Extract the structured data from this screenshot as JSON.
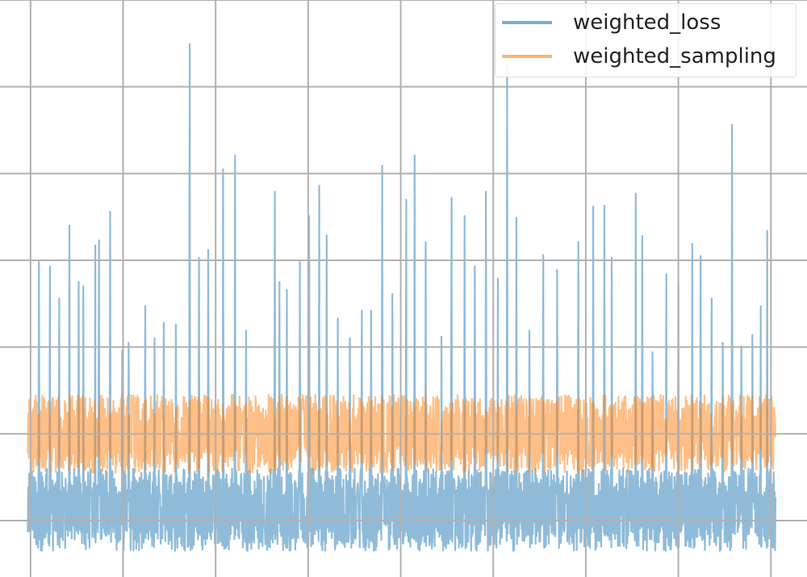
{
  "chart_data": {
    "type": "line",
    "title": "",
    "xlabel": "",
    "ylabel": "",
    "xlim": [
      -0.33,
      8.39
    ],
    "ylim": [
      -0.65,
      6.0
    ],
    "grid": true,
    "x_gridlines": [
      0,
      1,
      2,
      3,
      4,
      5,
      6,
      7,
      8
    ],
    "y_gridlines": [
      0,
      1,
      2,
      3,
      4,
      5,
      6
    ],
    "legend": {
      "placement": "top-right",
      "entries": [
        "weighted_loss",
        "weighted_sampling"
      ]
    },
    "series": [
      {
        "name": "weighted_loss",
        "color": "#1f77b4",
        "baseline_range": [
          -0.35,
          0.6
        ],
        "x_range": [
          -0.03,
          8.05
        ],
        "spikes": [
          [
            0.09,
            2.98
          ],
          [
            0.21,
            2.93
          ],
          [
            0.31,
            2.56
          ],
          [
            0.42,
            3.4
          ],
          [
            0.52,
            2.75
          ],
          [
            0.57,
            2.7
          ],
          [
            0.7,
            3.17
          ],
          [
            0.74,
            3.23
          ],
          [
            0.86,
            3.56
          ],
          [
            0.99,
            1.96
          ],
          [
            1.06,
            2.05
          ],
          [
            1.24,
            2.47
          ],
          [
            1.34,
            2.1
          ],
          [
            1.44,
            2.28
          ],
          [
            1.57,
            2.26
          ],
          [
            1.72,
            5.49
          ],
          [
            1.82,
            3.03
          ],
          [
            1.92,
            3.12
          ],
          [
            2.08,
            4.05
          ],
          [
            2.21,
            4.21
          ],
          [
            2.33,
            2.19
          ],
          [
            2.64,
            3.79
          ],
          [
            2.69,
            2.75
          ],
          [
            2.77,
            2.66
          ],
          [
            2.91,
            2.98
          ],
          [
            3.01,
            3.51
          ],
          [
            3.12,
            3.86
          ],
          [
            3.2,
            3.29
          ],
          [
            3.32,
            2.33
          ],
          [
            3.45,
            2.1
          ],
          [
            3.58,
            2.42
          ],
          [
            3.68,
            2.42
          ],
          [
            3.8,
            4.09
          ],
          [
            3.91,
            2.61
          ],
          [
            4.06,
            3.7
          ],
          [
            4.15,
            4.21
          ],
          [
            4.27,
            3.21
          ],
          [
            4.44,
            2.12
          ],
          [
            4.55,
            3.72
          ],
          [
            4.69,
            3.51
          ],
          [
            4.8,
            2.93
          ],
          [
            4.92,
            3.79
          ],
          [
            5.05,
            2.79
          ],
          [
            5.15,
            5.26
          ],
          [
            5.25,
            3.49
          ],
          [
            5.39,
            2.19
          ],
          [
            5.54,
            3.06
          ],
          [
            5.69,
            2.89
          ],
          [
            5.92,
            3.21
          ],
          [
            6.08,
            3.62
          ],
          [
            6.2,
            3.63
          ],
          [
            6.28,
            3.03
          ],
          [
            6.54,
            3.77
          ],
          [
            6.61,
            3.28
          ],
          [
            6.72,
            1.94
          ],
          [
            6.87,
            2.84
          ],
          [
            7.0,
            2.75
          ],
          [
            7.15,
            3.19
          ],
          [
            7.24,
            3.05
          ],
          [
            7.36,
            2.56
          ],
          [
            7.48,
            2.05
          ],
          [
            7.58,
            4.56
          ],
          [
            7.68,
            2.01
          ],
          [
            7.8,
            2.14
          ],
          [
            7.89,
            2.47
          ],
          [
            7.96,
            3.34
          ]
        ]
      },
      {
        "name": "weighted_sampling",
        "color": "#ff7f0e",
        "baseline_range": [
          0.55,
          1.45
        ],
        "x_range": [
          -0.03,
          8.05
        ],
        "spikes": []
      }
    ]
  }
}
